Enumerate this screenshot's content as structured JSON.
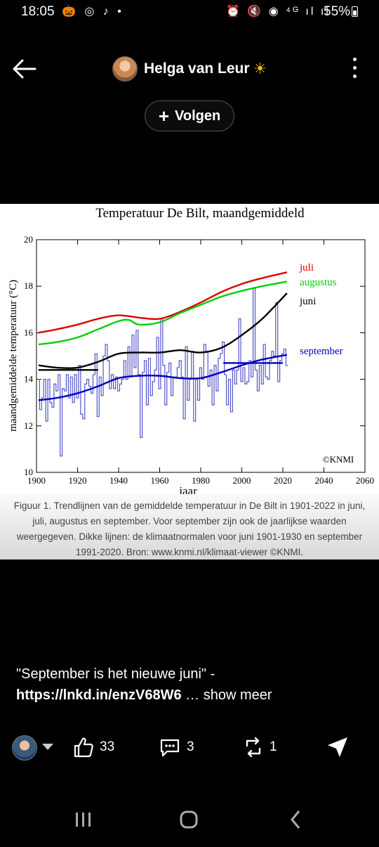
{
  "status_bar": {
    "time": "18:05",
    "left_icons": "🎃 ◎ ♪ •",
    "right_icons": "⏰ 🔇 ◉ ⁴ᴳ ıl ıl",
    "battery": "55%"
  },
  "header": {
    "author_name": "Helga van Leur",
    "author_emoji": "☀",
    "follow_label": "Volgen",
    "follow_icon": "+"
  },
  "chart_data": {
    "type": "line",
    "title": "Temperatuur De Bilt, maandgemiddeld",
    "xlabel": "jaar",
    "ylabel": "maandgemiddelde temperatuur (°C)",
    "xlim": [
      1900,
      2060
    ],
    "ylim": [
      10,
      20
    ],
    "x_ticks": [
      1900,
      1920,
      1940,
      1960,
      1980,
      2000,
      2020,
      2040,
      2060
    ],
    "y_ticks": [
      10,
      12,
      14,
      16,
      18,
      20
    ],
    "annotation": "©KNMI",
    "colors": {
      "juli": "#dd0000",
      "augustus": "#00d000",
      "juni": "#000000",
      "september": "#0000c0",
      "september_annual": "#5555cc"
    },
    "series": [
      {
        "name": "juli",
        "x": [
          1901,
          1910,
          1920,
          1930,
          1940,
          1950,
          1960,
          1970,
          1980,
          1990,
          2000,
          2010,
          2022
        ],
        "values": [
          16.0,
          16.15,
          16.35,
          16.6,
          16.75,
          16.65,
          16.6,
          16.9,
          17.3,
          17.75,
          18.1,
          18.35,
          18.6
        ]
      },
      {
        "name": "augustus",
        "x": [
          1901,
          1910,
          1920,
          1930,
          1940,
          1945,
          1950,
          1960,
          1970,
          1980,
          1990,
          2000,
          2010,
          2022
        ],
        "values": [
          15.5,
          15.6,
          15.8,
          16.15,
          16.5,
          16.55,
          16.35,
          16.45,
          16.85,
          17.2,
          17.55,
          17.8,
          18.0,
          18.2
        ]
      },
      {
        "name": "juni",
        "x": [
          1901,
          1910,
          1920,
          1930,
          1940,
          1950,
          1960,
          1970,
          1980,
          1990,
          2000,
          2010,
          2022
        ],
        "values": [
          14.6,
          14.5,
          14.5,
          14.75,
          15.1,
          15.15,
          15.15,
          15.25,
          15.15,
          15.35,
          15.9,
          16.6,
          17.7
        ]
      },
      {
        "name": "september",
        "x": [
          1901,
          1910,
          1920,
          1930,
          1940,
          1950,
          1960,
          1970,
          1980,
          1990,
          2000,
          2010,
          2022
        ],
        "values": [
          13.1,
          13.2,
          13.4,
          13.7,
          14.05,
          14.15,
          14.15,
          14.05,
          14.05,
          14.3,
          14.6,
          14.85,
          15.05
        ]
      }
    ],
    "normals": [
      {
        "name": "juni 1901-1930",
        "x": [
          1901,
          1930
        ],
        "value": 14.4
      },
      {
        "name": "september 1991-2020",
        "x": [
          1991,
          2020
        ],
        "value": 14.7
      }
    ],
    "september_annual": {
      "start_year": 1901,
      "values": [
        14.0,
        12.7,
        13.2,
        14.0,
        12.2,
        14.0,
        13.0,
        12.8,
        13.8,
        13.5,
        14.2,
        10.7,
        13.6,
        13.5,
        14.2,
        13.2,
        14.1,
        13.0,
        14.2,
        13.2,
        14.6,
        12.5,
        12.3,
        13.8,
        14.0,
        13.7,
        13.4,
        14.2,
        15.1,
        12.4,
        14.1,
        13.3,
        15.0,
        15.5,
        14.8,
        13.6,
        14.2,
        13.6,
        14.1,
        13.5,
        13.8,
        14.0,
        14.8,
        14.0,
        15.4,
        14.1,
        15.9,
        14.5,
        16.1,
        14.2,
        11.5,
        14.3,
        14.8,
        12.9,
        14.9,
        13.3,
        13.9,
        14.4,
        15.8,
        13.6,
        16.6,
        14.6,
        12.9,
        14.3,
        14.7,
        13.3,
        14.1,
        14.1,
        14.5,
        14.8,
        14.1,
        12.3,
        15.4,
        13.1,
        14.0,
        15.2,
        12.2,
        14.0,
        13.1,
        14.5,
        14.0,
        15.5,
        15.2,
        13.7,
        14.4,
        12.9,
        14.6,
        13.5,
        14.9,
        15.1,
        15.6,
        14.2,
        12.9,
        14.0,
        12.6,
        14.4,
        13.8,
        14.4,
        16.6,
        13.9,
        14.5,
        13.8,
        13.9,
        14.8,
        14.1,
        17.9,
        14.4,
        13.5,
        14.6,
        13.8,
        15.5,
        14.1,
        14.0,
        14.8,
        15.2,
        15.0,
        17.3,
        13.9,
        14.8,
        15.1,
        15.3,
        14.6
      ]
    }
  },
  "caption": "Figuur 1. Trendlijnen van de gemiddelde temperatuur in De Bilt in 1901-2022 in juni, juli, augustus en september. Voor september zijn ook de jaarlijkse waarden weergegeven. Dikke lijnen: de klimaatnormalen voor juni 1901-1930 en september 1991-2020. Bron: www.knmi.nl/klimaat-viewer ©KNMI.",
  "post": {
    "text": "\"September is het nieuwe juni\" -",
    "link": "https://lnkd.in/enzV68W6",
    "ellipsis": " … ",
    "show_more": "show meer"
  },
  "actions": {
    "likes": "33",
    "comments": "3",
    "reposts": "1"
  }
}
